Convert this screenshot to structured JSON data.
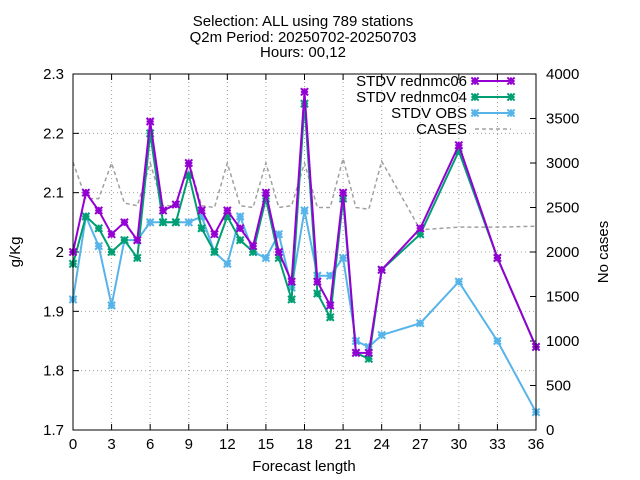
{
  "chart_data": {
    "type": "line",
    "title_lines": [
      "Selection: ALL using   789 stations",
      "Q2m   Period: 20250702-20250703",
      "Hours: 00,12"
    ],
    "xlabel": "Forecast length",
    "ylabel": "g/Kg",
    "y2label": "No cases",
    "xlim": [
      0,
      36
    ],
    "ylim": [
      1.7,
      2.3
    ],
    "y2lim": [
      0,
      4000
    ],
    "xticks": [
      0,
      3,
      6,
      9,
      12,
      15,
      18,
      21,
      24,
      27,
      30,
      33,
      36
    ],
    "yticks": [
      1.7,
      1.8,
      1.9,
      2.0,
      2.1,
      2.2,
      2.3
    ],
    "ytick_labels": [
      "1.7",
      "1.8",
      "1.9",
      "2",
      "2.1",
      "2.2",
      "2.3"
    ],
    "y2ticks": [
      0,
      500,
      1000,
      1500,
      2000,
      2500,
      3000,
      3500,
      4000
    ],
    "grid": true,
    "legend_position": "top-right",
    "series": [
      {
        "name": "STDV rednmc06",
        "color": "#9400d3",
        "marker": "x-star",
        "axis": "y1",
        "x": [
          0,
          1,
          2,
          3,
          4,
          5,
          6,
          7,
          8,
          9,
          10,
          11,
          12,
          13,
          14,
          15,
          16,
          17,
          18,
          19,
          20,
          21,
          22,
          23,
          24,
          27,
          30,
          33,
          36
        ],
        "y": [
          2.0,
          2.1,
          2.07,
          2.03,
          2.05,
          2.02,
          2.22,
          2.07,
          2.08,
          2.15,
          2.07,
          2.03,
          2.07,
          2.04,
          2.01,
          2.1,
          2.0,
          1.95,
          2.27,
          1.95,
          1.91,
          2.1,
          1.83,
          1.83,
          1.97,
          2.04,
          2.18,
          1.99,
          1.84
        ]
      },
      {
        "name": "STDV rednmc04",
        "color": "#009e73",
        "marker": "x-star",
        "axis": "y1",
        "x": [
          0,
          1,
          2,
          3,
          4,
          5,
          6,
          7,
          8,
          9,
          10,
          11,
          12,
          13,
          14,
          15,
          16,
          17,
          18,
          19,
          20,
          21,
          22,
          23,
          24,
          27,
          30,
          33,
          36
        ],
        "y": [
          1.98,
          2.06,
          2.04,
          2.0,
          2.02,
          1.99,
          2.2,
          2.05,
          2.05,
          2.13,
          2.04,
          2.0,
          2.06,
          2.02,
          2.0,
          2.09,
          1.99,
          1.92,
          2.25,
          1.93,
          1.89,
          2.09,
          1.83,
          1.82,
          1.97,
          2.03,
          2.17,
          1.99,
          1.84
        ]
      },
      {
        "name": "STDV OBS",
        "color": "#56b4e9",
        "marker": "x-star",
        "axis": "y1",
        "x": [
          0,
          1,
          2,
          3,
          4,
          5,
          6,
          7,
          8,
          9,
          10,
          11,
          12,
          13,
          14,
          15,
          16,
          17,
          18,
          19,
          20,
          21,
          22,
          23,
          24,
          27,
          30,
          33,
          36
        ],
        "y": [
          1.92,
          2.06,
          2.01,
          1.91,
          2.02,
          2.02,
          2.05,
          2.05,
          2.05,
          2.05,
          2.06,
          2.0,
          1.98,
          2.06,
          2.0,
          1.99,
          2.03,
          1.94,
          2.07,
          1.96,
          1.96,
          1.99,
          1.85,
          1.84,
          1.86,
          1.88,
          1.95,
          1.85,
          1.73
        ]
      },
      {
        "name": "CASES",
        "color": "#a0a0a0",
        "marker": "none",
        "dash": true,
        "axis": "y2",
        "x": [
          0,
          1,
          2,
          3,
          4,
          5,
          6,
          7,
          8,
          9,
          10,
          11,
          12,
          13,
          14,
          15,
          16,
          17,
          18,
          19,
          20,
          21,
          22,
          23,
          24,
          27,
          30,
          33,
          36
        ],
        "y": [
          3010,
          2600,
          2600,
          3000,
          2550,
          2520,
          3000,
          2520,
          2520,
          3000,
          2520,
          2500,
          3000,
          2520,
          2500,
          3000,
          2500,
          2520,
          3000,
          2500,
          2500,
          3050,
          2500,
          2480,
          3020,
          2250,
          2280,
          2280,
          2290
        ]
      }
    ]
  }
}
